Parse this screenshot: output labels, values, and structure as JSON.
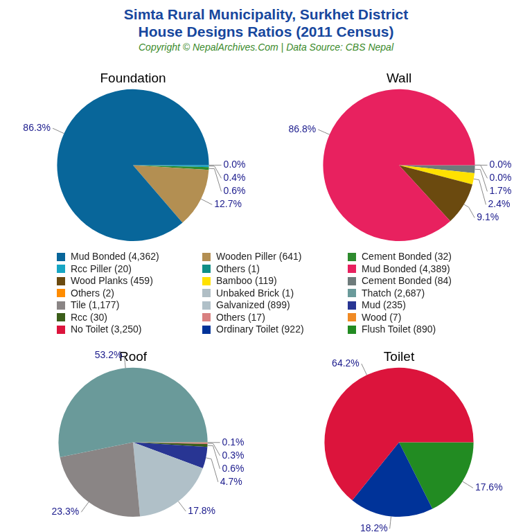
{
  "title": "Simta Rural Municipality, Surkhet District\nHouse Designs Ratios (2011 Census)",
  "subtitle": "Copyright © NepalArchives.Com | Data Source: CBS Nepal",
  "chart_data": [
    {
      "type": "pie",
      "title": "Foundation",
      "categories": [
        "Mud Bonded (4,362)",
        "Wooden Piller (641)",
        "Cement Bonded (32)",
        "Rcc Piller (20)",
        "Others (1)"
      ],
      "values": [
        86.3,
        12.7,
        0.6,
        0.4,
        0
      ],
      "value_labels": [
        "86.3%",
        "12.7%",
        "0.6%",
        "0.4%",
        "0.0%"
      ],
      "colors": [
        "#08669a",
        "#b38f52",
        "#2e8b2e",
        "#17a6c4",
        "#0f8f86"
      ],
      "data_labels": true
    },
    {
      "type": "pie",
      "title": "Wall",
      "categories": [
        "Mud Bonded (4,389)",
        "Wood Planks (459)",
        "Bamboo (119)",
        "Cement Bonded (84)",
        "Others (2)",
        "Unbaked Brick (1)"
      ],
      "values": [
        86.8,
        9.1,
        2.4,
        1.7,
        0,
        0
      ],
      "value_labels": [
        "86.8%",
        "9.1%",
        "2.4%",
        "1.7%",
        "0.0%",
        "0.0%"
      ],
      "colors": [
        "#e8215f",
        "#6b4a0f",
        "#ffe100",
        "#6e7b7b",
        "#ff8c00",
        "#b0bec5"
      ],
      "data_labels": true
    },
    {
      "type": "pie",
      "title": "Roof",
      "categories": [
        "Thatch (2,687)",
        "Tile (1,177)",
        "Galvanized (899)",
        "Mud (235)",
        "Rcc (30)",
        "Others (17)",
        "Wood (7)"
      ],
      "values": [
        53.2,
        23.3,
        17.8,
        4.7,
        0.6,
        0.3,
        0.1
      ],
      "value_labels": [
        "53.2%",
        "23.3%",
        "17.8%",
        "4.7%",
        "0.6%",
        "0.3%",
        "0.1%"
      ],
      "colors": [
        "#6a9a9a",
        "#8a8585",
        "#b0c0c8",
        "#283593",
        "#3b5e1a",
        "#d98080",
        "#f08a24"
      ],
      "data_labels": true
    },
    {
      "type": "pie",
      "title": "Toilet",
      "categories": [
        "No Toilet (3,250)",
        "Ordinary Toilet (922)",
        "Flush Toilet (890)"
      ],
      "values": [
        64.2,
        18.2,
        17.6
      ],
      "value_labels": [
        "64.2%",
        "18.2%",
        "17.6%"
      ],
      "colors": [
        "#dc143c",
        "#003399",
        "#228b22"
      ],
      "data_labels": true
    }
  ]
}
